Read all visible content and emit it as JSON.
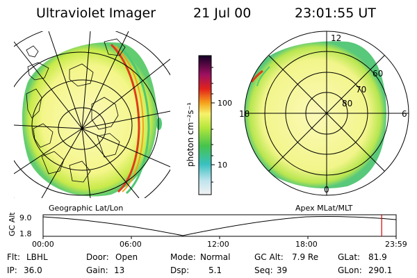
{
  "header": {
    "instrument": "Ultraviolet Imager",
    "date": "21 Jul 00",
    "time": "23:01:55 UT"
  },
  "colorbar": {
    "label": "photon cm⁻²s⁻¹",
    "ticks": [
      "100",
      "10"
    ],
    "scale": "log"
  },
  "polar_plot": {
    "mlt_labels": [
      "12",
      "18",
      "6",
      "0"
    ],
    "mlat_labels": [
      "60",
      "70",
      "80"
    ]
  },
  "projection_labels": {
    "left": "Geographic Lat/Lon",
    "right": "Apex MLat/MLT"
  },
  "altitude_plot": {
    "ylabel": "GC Alt",
    "yticks": [
      "9.0",
      "1.8"
    ],
    "xticks": [
      "00:00",
      "06:00",
      "12:00",
      "18:00",
      "23:59"
    ],
    "current_time_fraction": 0.959
  },
  "info": {
    "flt_label": "Flt:",
    "flt_value": "LBHL",
    "ip_label": "IP:",
    "ip_value": "36.0",
    "door_label": "Door:",
    "door_value": "Open",
    "gain_label": "Gain:",
    "gain_value": "13",
    "mode_label": "Mode:",
    "mode_value": "Normal",
    "dsp_label": "Dsp:",
    "dsp_value": "5.1",
    "gcalt_label": "GC Alt:",
    "gcalt_value": "7.9 Re",
    "seq_label": "Seq:",
    "seq_value": "39",
    "glat_label": "GLat:",
    "glat_value": "81.9",
    "glon_label": "GLon:",
    "glon_value": "290.1"
  },
  "colors": {
    "background": "#ffffff",
    "image_fill": "#f6f88a",
    "image_edge": "#52c86a",
    "hot_arc": "#e23a1a",
    "time_marker": "#d40000"
  }
}
